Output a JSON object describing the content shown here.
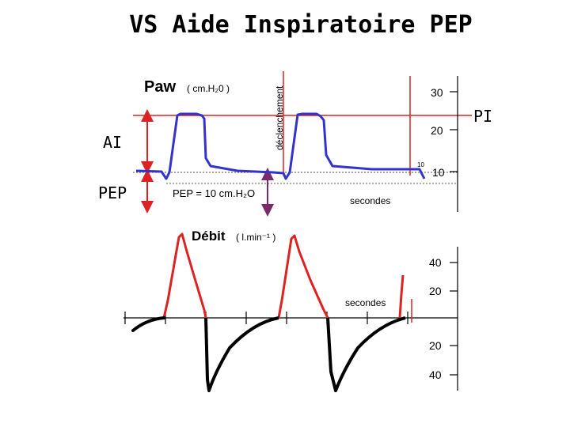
{
  "title": "VS Aide Inspiratoire PEP",
  "pressure_panel": {
    "label_main": "Paw",
    "label_unit": "( cm.H₂0 )",
    "trigger_label": "déclenchement",
    "ai_label": "AI",
    "pep_label": "PEP",
    "pep_value_text": "PEP = 10 cm.H₂O",
    "pi_label": "PI",
    "seconds_label": "secondes",
    "ticks": [
      "30",
      "20",
      "10"
    ],
    "small_mark": "10",
    "colors": {
      "pressure_curve": "#3333cc",
      "reference_lines": "#dd2222",
      "pep_arrow": "#7a2a6a"
    }
  },
  "flow_panel": {
    "label_main": "Débit",
    "label_unit": "( l.min⁻¹ )",
    "seconds_label": "secondes",
    "ticks_top": [
      "40",
      "20"
    ],
    "ticks_bottom": [
      "20",
      "40"
    ],
    "colors": {
      "inspiratory": "#dd2222",
      "expiratory": "#000000"
    }
  }
}
